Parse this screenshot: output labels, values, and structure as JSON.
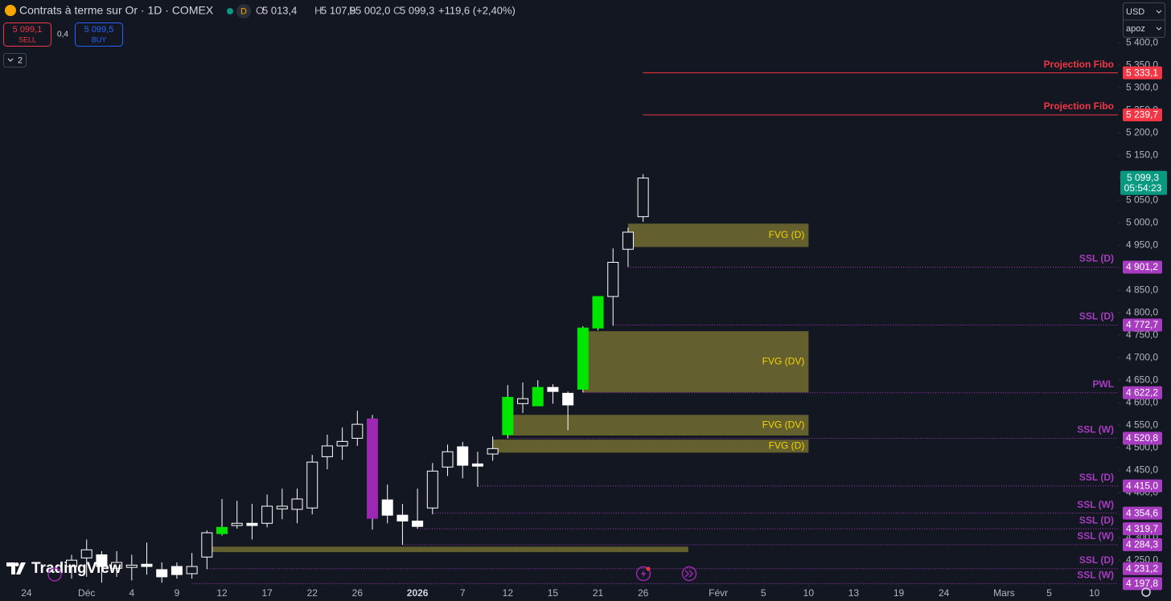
{
  "header": {
    "symbol": "Contrats à terme sur Or · 1D · COMEX",
    "badge": "D",
    "ohlc": [
      {
        "key": "O",
        "value": "5 013,4"
      },
      {
        "key": "H",
        "value": "5 107,9"
      },
      {
        "key": "B",
        "value": "5 002,0"
      },
      {
        "key": "C",
        "value": "5 099,3"
      }
    ],
    "change": "+119,6 (+2,40%)"
  },
  "trade": {
    "sell_price": "5 099,1",
    "sell": "SELL",
    "spread": "0,4",
    "buy_price": "5 099,5",
    "buy": "BUY"
  },
  "indicators_count": "2",
  "currency": "USD",
  "unit": "apoz",
  "brand": "TradingView",
  "chart_data": {
    "type": "candlestick",
    "xlim": [
      -1.76,
      72.57
    ],
    "xticks": [
      {
        "value": 0,
        "label": "24"
      },
      {
        "value": 4,
        "label": "Déc"
      },
      {
        "value": 7,
        "label": "4"
      },
      {
        "value": 10,
        "label": "9"
      },
      {
        "value": 13,
        "label": "12"
      },
      {
        "value": 16,
        "label": "17"
      },
      {
        "value": 19,
        "label": "22"
      },
      {
        "value": 22,
        "label": "26"
      },
      {
        "value": 26,
        "label": "2026"
      },
      {
        "value": 29,
        "label": "7"
      },
      {
        "value": 32,
        "label": "12"
      },
      {
        "value": 35,
        "label": "15"
      },
      {
        "value": 38,
        "label": "21"
      },
      {
        "value": 41,
        "label": "26"
      },
      {
        "value": 46,
        "label": "Févr"
      },
      {
        "value": 49,
        "label": "5"
      },
      {
        "value": 52,
        "label": "10"
      },
      {
        "value": 55,
        "label": "13"
      },
      {
        "value": 58,
        "label": "19"
      },
      {
        "value": 61,
        "label": "24"
      },
      {
        "value": 65,
        "label": "Mars"
      },
      {
        "value": 68,
        "label": "5"
      },
      {
        "value": 71,
        "label": "10"
      }
    ],
    "ylim": [
      4195,
      5495
    ],
    "yticks": [
      {
        "value": 4250,
        "label": "4 250,0"
      },
      {
        "value": 4300,
        "label": "4 300,0"
      },
      {
        "value": 4350,
        "label": "4 350,0"
      },
      {
        "value": 4400,
        "label": "4 400,0"
      },
      {
        "value": 4450,
        "label": "4 450,0"
      },
      {
        "value": 4500,
        "label": "4 500,0"
      },
      {
        "value": 4550,
        "label": "4 550,0"
      },
      {
        "value": 4600,
        "label": "4 600,0"
      },
      {
        "value": 4650,
        "label": "4 650,0"
      },
      {
        "value": 4700,
        "label": "4 700,0"
      },
      {
        "value": 4750,
        "label": "4 750,0"
      },
      {
        "value": 4800,
        "label": "4 800,0"
      },
      {
        "value": 4850,
        "label": "4 850,0"
      },
      {
        "value": 4900,
        "label": "4 900,0"
      },
      {
        "value": 4950,
        "label": "4 950,0"
      },
      {
        "value": 5000,
        "label": "5 000,0"
      },
      {
        "value": 5050,
        "label": "5 050,0"
      },
      {
        "value": 5100,
        "label": "5 100,0"
      },
      {
        "value": 5150,
        "label": "5 150,0"
      },
      {
        "value": 5200,
        "label": "5 200,0"
      },
      {
        "value": 5250,
        "label": "5 250,0"
      },
      {
        "value": 5300,
        "label": "5 300,0"
      },
      {
        "value": 5350,
        "label": "5 350,0"
      },
      {
        "value": 5400,
        "label": "5 400,0"
      }
    ],
    "x": [
      3,
      4,
      5,
      6,
      7,
      8,
      9,
      10,
      11,
      12,
      13,
      14,
      15,
      16,
      17,
      18,
      19,
      20,
      21,
      22,
      23,
      24,
      25,
      26,
      27,
      28,
      29,
      30,
      31,
      32,
      33,
      34,
      35,
      36,
      37,
      38,
      39,
      40,
      41
    ],
    "open": [
      4236,
      4255,
      4262,
      4232,
      4234,
      4241,
      4229,
      4236,
      4220,
      4257,
      4309,
      4327,
      4332,
      4332,
      4364,
      4363,
      4366,
      4480,
      4504,
      4521,
      4564,
      4384,
      4350,
      4337,
      4366,
      4457,
      4502,
      4464,
      4486,
      4529,
      4598,
      4593,
      4634,
      4621,
      4630,
      4766,
      4836,
      4941,
      5013.4
    ],
    "high": [
      4262,
      4296,
      4270,
      4270,
      4262,
      4289,
      4245,
      4245,
      4266,
      4316,
      4386,
      4382,
      4375,
      4396,
      4409,
      4409,
      4484,
      4529,
      4545,
      4582,
      4573,
      4418,
      4375,
      4409,
      4466,
      4507,
      4513,
      4491,
      4525,
      4639,
      4645,
      4650,
      4641,
      4625,
      4770,
      4836,
      4943,
      4989,
      5107.9
    ],
    "low": [
      4209,
      4213,
      4200,
      4213,
      4205,
      4218,
      4200,
      4209,
      4209,
      4230,
      4305,
      4320,
      4296,
      4323,
      4341,
      4332,
      4352,
      4452,
      4473,
      4504,
      4318,
      4332,
      4284,
      4320,
      4352,
      4437,
      4432,
      4413,
      4471,
      4521,
      4577,
      4593,
      4598,
      4539,
      4623,
      4761,
      4771,
      4902,
      5002.0
    ],
    "close": [
      4250,
      4273,
      4236,
      4245,
      4239,
      4236,
      4213,
      4218,
      4236,
      4311,
      4323,
      4332,
      4327,
      4370,
      4370,
      4386,
      4468,
      4504,
      4514,
      4552,
      4343,
      4350,
      4337,
      4325,
      4448,
      4491,
      4461,
      4459,
      4498,
      4612,
      4609,
      4634,
      4625,
      4595,
      4766,
      4836,
      4912,
      4979,
      5099.3
    ],
    "colors": [
      "#ffffff",
      "#ffffff",
      "#ffffff",
      "#ffffff",
      "#ffffff",
      "#ffffff",
      "#ffffff",
      "#ffffff",
      "#ffffff",
      "#ffffff",
      "#00e600",
      "#ffffff",
      "#ffffff",
      "#ffffff",
      "#ffffff",
      "#ffffff",
      "#ffffff",
      "#ffffff",
      "#ffffff",
      "#ffffff",
      "#9c27b0",
      "#ffffff",
      "#ffffff",
      "#ffffff",
      "#ffffff",
      "#ffffff",
      "#ffffff",
      "#ffffff",
      "#ffffff",
      "#00e600",
      "#ffffff",
      "#00e600",
      "#ffffff",
      "#ffffff",
      "#00e600",
      "#00e600",
      "#ffffff",
      "#ffffff",
      "#ffffff"
    ],
    "zones": [
      {
        "name": "FVG (D)",
        "top": 4998,
        "bottom": 4946,
        "start": 40,
        "end": 52,
        "color": "#6e6731"
      },
      {
        "name": "FVG (DV)",
        "top": 4759,
        "bottom": 4623,
        "start": 37,
        "end": 52,
        "color": "#6e6731"
      },
      {
        "name": "FVG (DV)",
        "top": 4573,
        "bottom": 4527,
        "start": 32,
        "end": 52,
        "color": "#6e6731"
      },
      {
        "name": "FVG (D)",
        "top": 4518,
        "bottom": 4489,
        "start": 31,
        "end": 52,
        "color": "#6e6731"
      },
      {
        "top": 4280,
        "bottom": 4268,
        "start": 12,
        "end": 44,
        "color": "#6e6731"
      }
    ],
    "levels": [
      {
        "name": "Projection Fibo",
        "value": 5333.1,
        "label": "5 333,1",
        "start": 41,
        "color": "#f23645",
        "style": "solid"
      },
      {
        "name": "Projection Fibo",
        "value": 5239.7,
        "label": "5 239,7",
        "start": 41,
        "color": "#f23645",
        "style": "solid"
      },
      {
        "name": "SSL (D)",
        "value": 4901.2,
        "label": "4 901,2",
        "start": 40,
        "color": "#a83cc0",
        "style": "dotted"
      },
      {
        "name": "SSL (D)",
        "value": 4772.7,
        "label": "4 772,7",
        "start": 39,
        "color": "#a83cc0",
        "style": "dotted"
      },
      {
        "name": "PWL",
        "value": 4622.2,
        "label": "4 622,2",
        "start": 37,
        "color": "#a83cc0",
        "style": "dotted"
      },
      {
        "name": "SSL (W)",
        "value": 4520.8,
        "label": "4 520,8",
        "start": 32,
        "color": "#a83cc0",
        "style": "dotted"
      },
      {
        "name": "SSL (D)",
        "value": 4415.0,
        "label": "4 415,0",
        "start": 30,
        "color": "#a83cc0",
        "style": "dotted"
      },
      {
        "name": "SSL (W)",
        "value": 4354.6,
        "label": "4 354,6",
        "start": 27,
        "color": "#a83cc0",
        "style": "dotted"
      },
      {
        "name": "SSL (D)",
        "value": 4319.7,
        "label": "4 319,7",
        "start": 26,
        "color": "#a83cc0",
        "style": "dotted"
      },
      {
        "name": "SSL (W)",
        "value": 4284.3,
        "label": "4 284,3",
        "start": 25,
        "color": "#a83cc0",
        "style": "dotted"
      },
      {
        "name": "SSL (D)",
        "value": 4231.2,
        "label": "4 231,2",
        "start": 12,
        "color": "#a83cc0",
        "style": "dotted"
      },
      {
        "name": "SSL (W)",
        "value": 4197.8,
        "label": "4 197,8",
        "start": 11,
        "color": "#a83cc0",
        "style": "dotted"
      }
    ],
    "last_price": {
      "value": 5099.3,
      "label": "5 099,3",
      "countdown": "05:54:23",
      "color": "#089981"
    }
  }
}
